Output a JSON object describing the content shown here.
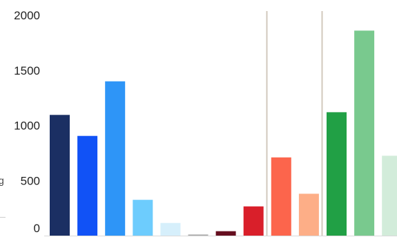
{
  "chart_data": {
    "type": "bar",
    "title": "",
    "xlabel": "",
    "ylabel": "",
    "ylim": [
      0,
      2000
    ],
    "yticks": [
      0,
      500,
      1000,
      1500,
      2000
    ],
    "grid": false,
    "legend": "none",
    "reference_lines": [
      2,
      2
    ],
    "edge_text": "g",
    "values": [
      1095,
      905,
      1400,
      325,
      115,
      10,
      40,
      265,
      710,
      380,
      1120,
      1860,
      725
    ],
    "colors": [
      "#1b2f63",
      "#1152f6",
      "#2e95f7",
      "#6dccfd",
      "#d6effb",
      "#a9a9a9",
      "#650e1f",
      "#d91f2a",
      "#fc654c",
      "#fdae87",
      "#21a045",
      "#79c98e",
      "#d2ecda"
    ]
  }
}
